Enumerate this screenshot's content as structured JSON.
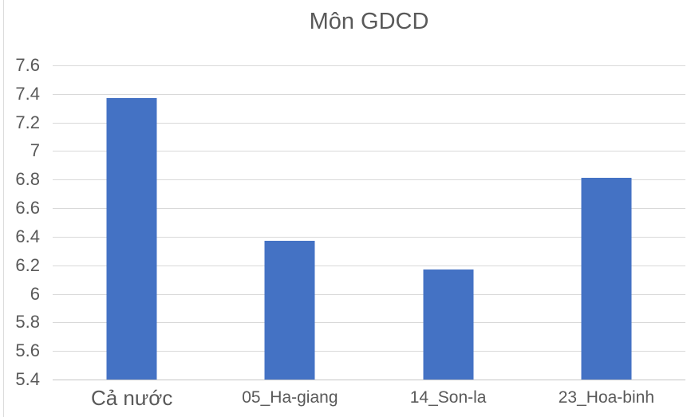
{
  "chart_data": {
    "type": "bar",
    "title": "Môn GDCD",
    "categories": [
      "Cả nước",
      "05_Ha-giang",
      "14_Son-la",
      "23_Hoa-binh"
    ],
    "values": [
      7.37,
      6.37,
      6.17,
      6.81
    ],
    "xlabel": "",
    "ylabel": "",
    "ylim": [
      5.4,
      7.6
    ],
    "ytick_step": 0.2,
    "yticks": [
      "7.6",
      "7.4",
      "7.2",
      "7",
      "6.8",
      "6.6",
      "6.4",
      "6.2",
      "6",
      "5.8",
      "5.6",
      "5.4"
    ],
    "grid": true,
    "legend": false,
    "bar_color": "#4472C4",
    "gridline_color": "#D9D9D9",
    "axis_line_color": "#C6C6C6",
    "text_color": "#595959",
    "background_color": "#FFFFFF"
  }
}
